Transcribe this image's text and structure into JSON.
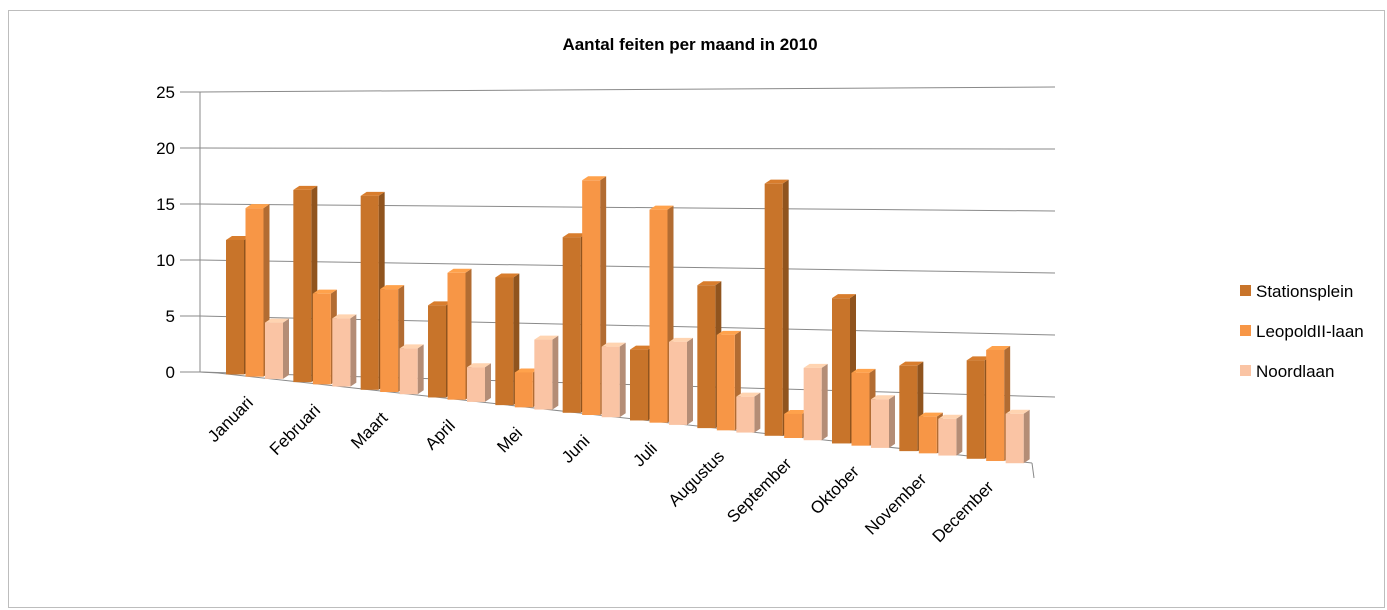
{
  "chart_data": {
    "type": "bar",
    "title": "Aantal feiten per maand in 2010",
    "categories": [
      "Januari",
      "Februari",
      "Maart",
      "April",
      "Mei",
      "Juni",
      "Juli",
      "Augustus",
      "September",
      "Oktober",
      "November",
      "December"
    ],
    "series": [
      {
        "name": "Stationsplein",
        "color": "#C8742A",
        "values": [
          12,
          17,
          17,
          8,
          11,
          15,
          6,
          12,
          21,
          12,
          7,
          8
        ]
      },
      {
        "name": "LeopoldII-laan",
        "color": "#F79646",
        "values": [
          15,
          8,
          9,
          11,
          3,
          20,
          18,
          8,
          2,
          6,
          3,
          9
        ]
      },
      {
        "name": "Noordlaan",
        "color": "#FAC4A4",
        "values": [
          5,
          6,
          4,
          3,
          6,
          6,
          7,
          3,
          6,
          4,
          3,
          4
        ]
      }
    ],
    "ylim": [
      0,
      25
    ],
    "yticks": [
      0,
      5,
      10,
      15,
      20,
      25
    ],
    "grid": true,
    "legend": "right"
  }
}
